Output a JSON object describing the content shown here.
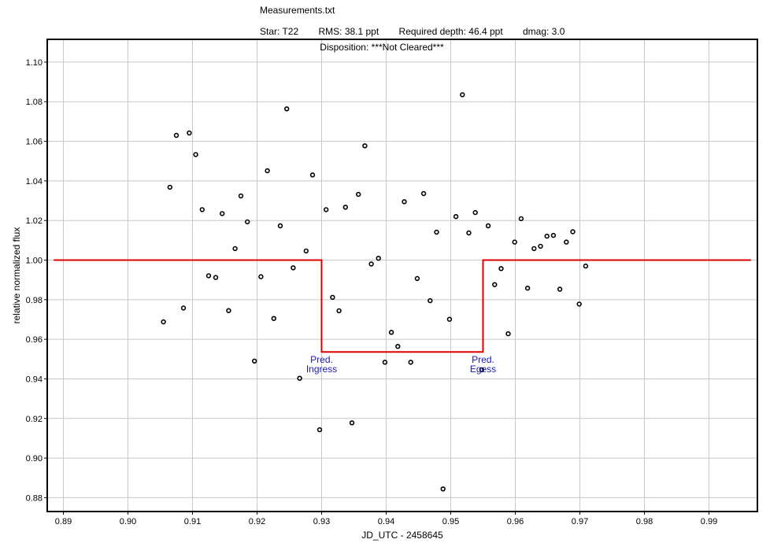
{
  "window": {
    "title": "Measurements.txt"
  },
  "header": {
    "star": "Star: T22",
    "rms": "RMS: 38.1 ppt",
    "required_depth": "Required depth: 46.4 ppt",
    "dmag": "dmag: 3.0",
    "disposition": "Disposition: ***Not Cleared***"
  },
  "colors": {
    "model": "#dd0000",
    "points": "#000000",
    "grid": "#c8c8c8",
    "annotation": "#1a1ab8"
  },
  "chart_data": {
    "type": "scatter",
    "xlabel": "JD_UTC - 2458645",
    "ylabel": "relative normalized flux",
    "xlim": [
      0.8875,
      0.9975
    ],
    "ylim": [
      0.873,
      1.1115
    ],
    "xticks": [
      0.89,
      0.9,
      0.91,
      0.92,
      0.93,
      0.94,
      0.95,
      0.96,
      0.97,
      0.98,
      0.99
    ],
    "xtick_labels": [
      "0.89",
      "0.90",
      "0.91",
      "0.92",
      "0.93",
      "0.94",
      "0.95",
      "0.96",
      "0.97",
      "0.98",
      "0.99"
    ],
    "yticks": [
      0.88,
      0.9,
      0.92,
      0.94,
      0.96,
      0.98,
      1.0,
      1.02,
      1.04,
      1.06,
      1.08,
      1.1
    ],
    "ytick_labels": [
      "0.88",
      "0.90",
      "0.92",
      "0.94",
      "0.96",
      "0.98",
      "1.00",
      "1.02",
      "1.04",
      "1.06",
      "1.08",
      "1.10"
    ],
    "grid": true,
    "series": [
      {
        "type": "scatter",
        "marker": "open-circle",
        "x": [
          0.9055,
          0.9065,
          0.9075,
          0.9086,
          0.9095,
          0.9105,
          0.9115,
          0.9125,
          0.9136,
          0.9146,
          0.9156,
          0.9166,
          0.9175,
          0.9185,
          0.9196,
          0.9206,
          0.9216,
          0.9226,
          0.9236,
          0.9246,
          0.9256,
          0.9266,
          0.9276,
          0.9286,
          0.9297,
          0.9307,
          0.9317,
          0.9327,
          0.9337,
          0.9347,
          0.9357,
          0.9367,
          0.9377,
          0.9388,
          0.9398,
          0.9408,
          0.9418,
          0.9428,
          0.9438,
          0.9448,
          0.9458,
          0.9468,
          0.9478,
          0.9488,
          0.9498,
          0.9508,
          0.9518,
          0.9528,
          0.9538,
          0.9548,
          0.9558,
          0.9568,
          0.9578,
          0.9589,
          0.9599,
          0.9609,
          0.9619,
          0.9629,
          0.9639,
          0.9649,
          0.9659,
          0.9669,
          0.9679,
          0.9689,
          0.9699,
          0.9709
        ],
        "y": [
          0.9688,
          1.0368,
          1.063,
          0.9758,
          1.0642,
          1.0533,
          1.0255,
          0.9921,
          0.9912,
          1.0235,
          0.9745,
          1.0058,
          1.0324,
          1.0193,
          0.949,
          0.9916,
          1.0451,
          0.9705,
          1.0173,
          1.0764,
          0.9961,
          0.9403,
          1.0046,
          1.043,
          0.9143,
          1.0255,
          0.9812,
          0.9744,
          1.0267,
          0.9178,
          1.0332,
          1.0577,
          0.998,
          1.0009,
          0.9484,
          0.9635,
          0.9564,
          1.0295,
          0.9484,
          0.9907,
          1.0336,
          0.9795,
          1.0141,
          0.8844,
          0.9701,
          1.022,
          1.0835,
          1.0137,
          1.024,
          0.9446,
          1.0173,
          0.9876,
          0.9957,
          0.9628,
          1.0091,
          1.0209,
          0.9858,
          1.0058,
          1.007,
          1.0121,
          1.0125,
          0.9853,
          1.0091,
          1.0143,
          0.9778,
          0.997
        ]
      },
      {
        "type": "line",
        "name": "model",
        "x": [
          0.8885,
          0.93,
          0.93,
          0.955,
          0.955,
          0.9965
        ],
        "y": [
          1.0,
          1.0,
          0.9536,
          0.9536,
          1.0,
          1.0
        ]
      }
    ],
    "annotations": [
      {
        "lines": [
          "Pred.",
          "Ingress"
        ],
        "x": 0.93,
        "y": 0.9536
      },
      {
        "lines": [
          "Pred.",
          "Egess"
        ],
        "x": 0.955,
        "y": 0.9536
      }
    ]
  }
}
